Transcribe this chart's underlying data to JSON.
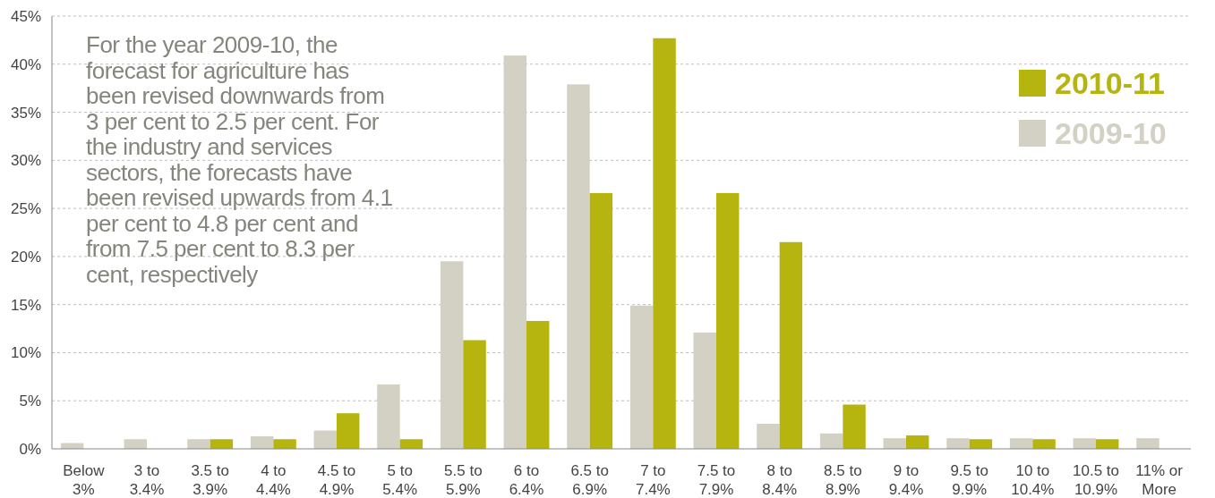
{
  "chart_data": {
    "type": "bar",
    "categories": [
      "Below 3%",
      "3 to 3.4%",
      "3.5 to 3.9%",
      "4 to 4.4%",
      "4.5 to 4.9%",
      "5 to 5.4%",
      "5.5 to 5.9%",
      "6 to 6.4%",
      "6.5 to 6.9%",
      "7 to 7.4%",
      "7.5 to 7.9%",
      "8 to 8.4%",
      "8.5 to 8.9%",
      "9 to 9.4%",
      "9.5 to 9.9%",
      "10 to 10.4%",
      "10.5 to 10.9%",
      "11% or More"
    ],
    "series": [
      {
        "name": "2009-10",
        "color": "#d3d1c4",
        "values": [
          0.6,
          1.0,
          1.0,
          1.3,
          1.9,
          6.7,
          19.5,
          40.9,
          37.9,
          14.9,
          12.1,
          2.6,
          1.6,
          1.1,
          1.1,
          1.1,
          1.1,
          1.1
        ]
      },
      {
        "name": "2010-11",
        "color": "#b6b50f",
        "values": [
          null,
          null,
          1.0,
          1.0,
          3.7,
          1.0,
          11.3,
          13.3,
          26.6,
          42.7,
          26.6,
          21.5,
          4.6,
          1.4,
          1.0,
          1.0,
          1.0,
          null
        ]
      }
    ],
    "ylim": [
      0,
      45
    ],
    "yticks": [
      {
        "value": 0,
        "label": "0%"
      },
      {
        "value": 5,
        "label": "5%"
      },
      {
        "value": 10,
        "label": "10%"
      },
      {
        "value": 15,
        "label": "15%"
      },
      {
        "value": 20,
        "label": "20%"
      },
      {
        "value": 25,
        "label": "25%"
      },
      {
        "value": 30,
        "label": "30%"
      },
      {
        "value": 35,
        "label": "35%"
      },
      {
        "value": 40,
        "label": "40%"
      },
      {
        "value": 45,
        "label": "45%"
      }
    ],
    "grid": "y",
    "legend": "top right",
    "annotations": [
      "For the year 2009-10, the forecast for agriculture has been revised downwards from 3 per cent to 2.5 per cent. For the industry and services sectors, the forecasts have been revised upwards from 4.1 per cent to 4.8 per cent and from 7.5 per cent to 8.3 per cent, respectively"
    ]
  }
}
